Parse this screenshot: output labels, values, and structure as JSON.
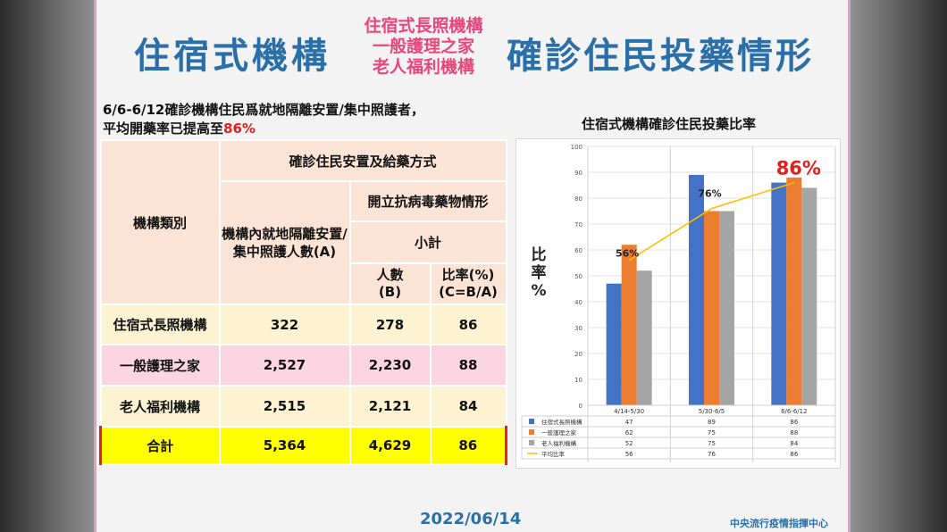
{
  "title": {
    "left": "住宿式機構",
    "middle_lines": [
      "住宿式長照機構",
      "一般護理之家",
      "老人福利機構"
    ],
    "right": "確診住民投藥情形"
  },
  "subtitle": {
    "line1": "6/6-6/12確診機構住民爲就地隔離安置/集中照護者，",
    "line2_prefix": "平均開藥率已提高至",
    "line2_value": "86%"
  },
  "table": {
    "header_type": "機構類別",
    "header_group": "確診住民安置及給藥方式",
    "header_a": "機構內就地隔離安置/集中照護人數(A)",
    "header_antiviral": "開立抗病毒藥物情形",
    "header_subtotal": "小計",
    "header_b_line1": "人數",
    "header_b_line2": "(B)",
    "header_c_line1": "比率(%)",
    "header_c_line2": "(C=B/A)",
    "rows": [
      {
        "type": "住宿式長照機構",
        "a": "322",
        "b": "278",
        "c": "86"
      },
      {
        "type": "一般護理之家",
        "a": "2,527",
        "b": "2,230",
        "c": "88"
      },
      {
        "type": "老人福利機構",
        "a": "2,515",
        "b": "2,121",
        "c": "84"
      }
    ],
    "total": {
      "type": "合計",
      "a": "5,364",
      "b": "4,629",
      "c": "86"
    }
  },
  "chart_title": "住宿式機構確診住民投藥比率",
  "chart_ylabel_chars": [
    "比",
    "率",
    "%"
  ],
  "chart_data": {
    "type": "bar",
    "categories": [
      "4/14-5/30",
      "5/30-6/5",
      "6/6-6/12"
    ],
    "series": [
      {
        "name": "住宿式長照機構",
        "values": [
          47,
          89,
          86
        ],
        "color": "#4472c4",
        "kind": "bar"
      },
      {
        "name": "一般護理之家",
        "values": [
          62,
          75,
          88
        ],
        "color": "#ed7d31",
        "kind": "bar"
      },
      {
        "name": "老人福利機構",
        "values": [
          52,
          75,
          84
        ],
        "color": "#a5a5a5",
        "kind": "bar"
      },
      {
        "name": "平均比率",
        "values": [
          56,
          76,
          86
        ],
        "color": "#ffc000",
        "kind": "line"
      }
    ],
    "yticks": [
      0,
      10,
      20,
      30,
      40,
      50,
      60,
      70,
      80,
      90,
      100
    ],
    "ylim": [
      0,
      100
    ],
    "annotations": [
      "56%",
      "76%",
      "86%"
    ],
    "annotation_colors": [
      "#222222",
      "#222222",
      "#e02020"
    ],
    "legend": "data-table"
  },
  "footer": {
    "date": "2022/06/14",
    "org": "中央流行疫情指揮中心"
  }
}
